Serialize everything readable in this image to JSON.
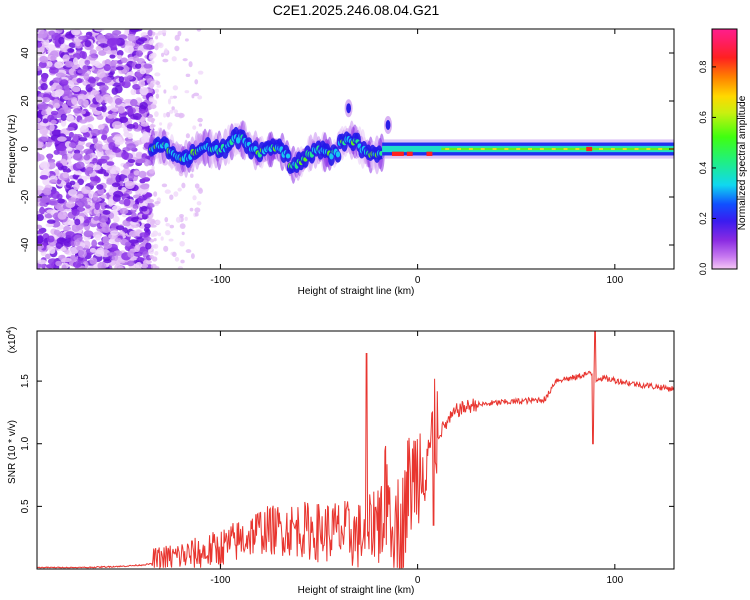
{
  "title": "C2E1.2025.246.08.04.G21",
  "chart_data": [
    {
      "type": "heatmap",
      "title": "C2E1.2025.246.08.04.G21",
      "xlabel": "Height of straight line (km)",
      "ylabel": "Frequency (Hz)",
      "xlim": [
        -193,
        130
      ],
      "ylim": [
        -50,
        50
      ],
      "xticks": [
        -100,
        0,
        100
      ],
      "yticks": [
        -40,
        -20,
        0,
        20,
        40
      ],
      "colorbar": {
        "label": "Normalized spectral amplitude",
        "range": [
          0,
          0.95
        ],
        "ticks": [
          "0.0",
          "0.2",
          "0.4",
          "0.6",
          "0.8"
        ]
      },
      "features": [
        {
          "name": "noise region",
          "x_range": [
            -193,
            -135
          ],
          "y_range": [
            -50,
            50
          ]
        },
        {
          "name": "sparse noise",
          "x_range": [
            -135,
            -110
          ],
          "y_range": [
            -50,
            50
          ]
        },
        {
          "name": "turbulent signal band",
          "x_range": [
            -135,
            -18
          ],
          "center_hz": 0,
          "half_width_hz": 7
        },
        {
          "name": "stable signal band",
          "x_range": [
            -18,
            130
          ],
          "center_hz": 0,
          "half_width_hz": 3
        },
        {
          "name": "strong peaks",
          "x": [
            -10,
            -4,
            6,
            87
          ],
          "y": [
            -2,
            -2,
            -2,
            0
          ]
        },
        {
          "name": "secondary traces",
          "x": [
            -35,
            -15
          ],
          "y": [
            17,
            10
          ]
        }
      ]
    },
    {
      "type": "line",
      "xlabel": "Height of straight line (km)",
      "ylabel": "SNR (10 * v/v)",
      "yscale_label": "(x10",
      "yscale_exp": "4",
      "xlim": [
        -193,
        130
      ],
      "ylim": [
        0,
        1.9
      ],
      "xticks": [
        -100,
        0,
        100
      ],
      "yticks": [
        "0.5",
        "1.0",
        "1.5"
      ],
      "series": [
        {
          "name": "SNR",
          "color": "#e8352f",
          "x": [
            -193,
            -170,
            -150,
            -140,
            -130,
            -120,
            -110,
            -100,
            -90,
            -80,
            -70,
            -60,
            -50,
            -40,
            -30,
            -25,
            -20,
            -15,
            -12,
            -8,
            -5,
            0,
            5,
            8,
            10,
            15,
            20,
            30,
            40,
            50,
            60,
            65,
            70,
            80,
            85,
            88,
            90,
            92,
            100,
            110,
            120,
            130
          ],
          "y": [
            0.01,
            0.01,
            0.02,
            0.03,
            0.05,
            0.07,
            0.08,
            0.12,
            0.18,
            0.25,
            0.25,
            0.25,
            0.22,
            0.22,
            0.18,
            0.2,
            0.35,
            0.5,
            0.3,
            0.2,
            0.55,
            0.7,
            0.9,
            0.95,
            1.05,
            1.15,
            1.25,
            1.3,
            1.32,
            1.33,
            1.34,
            1.35,
            1.5,
            1.52,
            1.55,
            1.55,
            1.5,
            1.52,
            1.5,
            1.47,
            1.45,
            1.43
          ]
        }
      ]
    }
  ]
}
